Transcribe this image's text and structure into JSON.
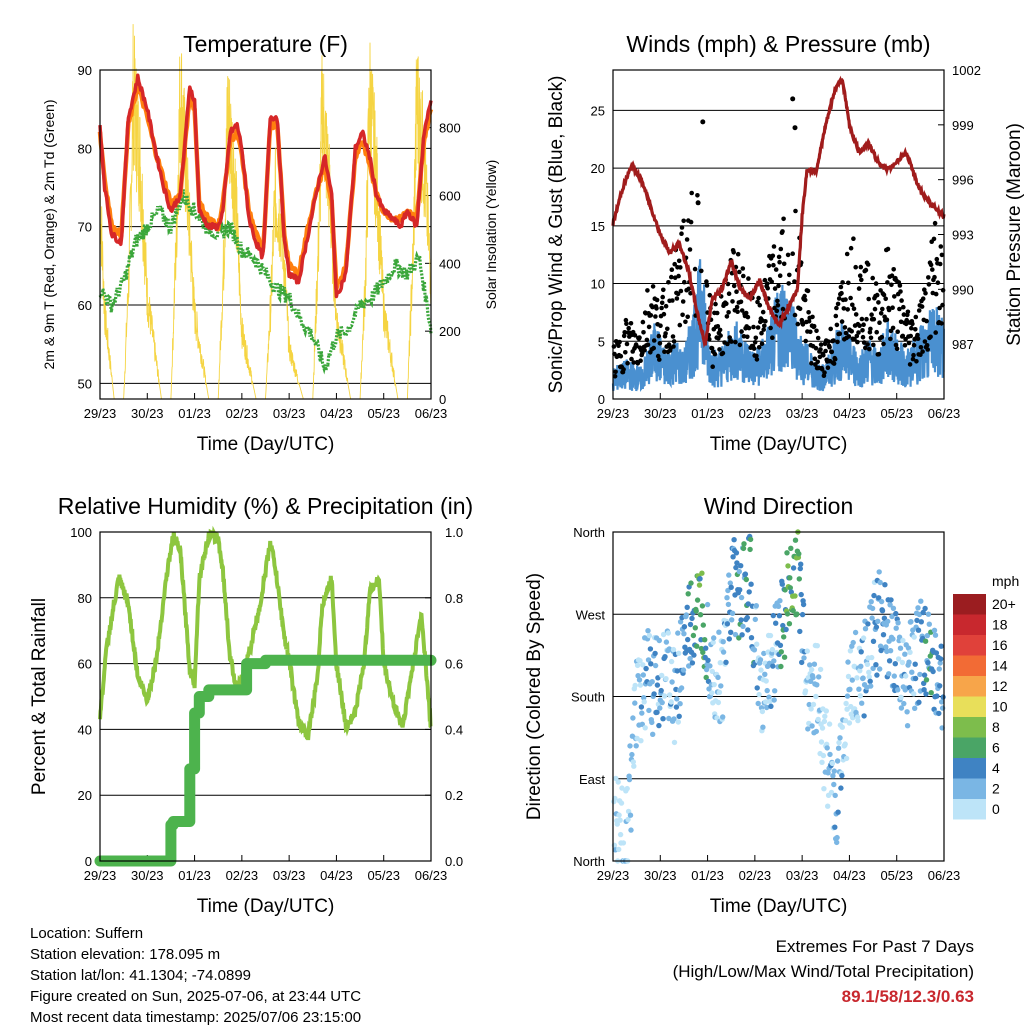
{
  "chart_data": [
    {
      "type": "line",
      "title": "Temperature (F)",
      "xlabel": "Time (Day/UTC)",
      "ylabel": "2m & 9m T (Red, Orange) & 2m Td (Green)",
      "ylabel_right": "Solar Insolation (Yellow)",
      "x_ticks": [
        "29/23",
        "30/23",
        "01/23",
        "02/23",
        "03/23",
        "04/23",
        "05/23",
        "06/23"
      ],
      "ylim": [
        48,
        90
      ],
      "y_ticks": [
        50,
        60,
        70,
        80,
        90
      ],
      "ylim_right": [
        0,
        970
      ],
      "y_ticks_right": [
        0,
        200,
        400,
        600,
        800
      ],
      "grid": true,
      "series": [
        {
          "color": "#d62728",
          "x": [
            0,
            0.1,
            0.25,
            0.45,
            0.6,
            0.8,
            1.0,
            1.2,
            1.35,
            1.5,
            1.7,
            1.9,
            2.0,
            2.1,
            2.3,
            2.5,
            2.6,
            2.75,
            2.9,
            3.0,
            3.15,
            3.3,
            3.45,
            3.6,
            3.75,
            3.9,
            4.0,
            4.2,
            4.4,
            4.6,
            4.75,
            4.9,
            5.0,
            5.2,
            5.4,
            5.55,
            5.7,
            5.85,
            6.0,
            6.2,
            6.35,
            6.5,
            6.7,
            6.85,
            7.0
          ],
          "values": [
            83,
            75,
            69,
            68,
            84,
            89,
            85,
            79,
            75,
            72,
            74,
            88,
            86,
            72,
            70,
            70,
            72,
            82,
            83,
            80,
            71,
            68,
            66,
            84,
            84,
            68,
            64,
            63,
            69,
            75,
            79,
            74,
            61,
            64,
            80,
            82,
            79,
            74,
            72,
            71,
            70,
            72,
            70,
            82,
            86
          ]
        },
        {
          "color": "#ff7f0e",
          "x": [
            0,
            0.1,
            0.25,
            0.45,
            0.6,
            0.8,
            1.0,
            1.2,
            1.35,
            1.5,
            1.7,
            1.9,
            2.0,
            2.1,
            2.3,
            2.5,
            2.6,
            2.75,
            2.9,
            3.0,
            3.15,
            3.3,
            3.45,
            3.6,
            3.75,
            3.9,
            4.0,
            4.2,
            4.4,
            4.6,
            4.75,
            4.9,
            5.0,
            5.2,
            5.4,
            5.55,
            5.7,
            5.85,
            6.0,
            6.2,
            6.35,
            6.5,
            6.7,
            6.85,
            7.0
          ],
          "values": [
            82,
            76,
            70,
            69,
            83,
            88,
            84,
            79,
            76,
            73,
            74,
            87,
            85,
            73,
            71,
            70,
            73,
            81,
            82,
            79,
            72,
            69,
            67,
            83,
            83,
            69,
            65,
            64,
            70,
            75,
            78,
            73,
            62,
            65,
            79,
            81,
            78,
            74,
            72,
            71,
            71,
            72,
            71,
            81,
            85
          ]
        },
        {
          "color": "#3aa63a",
          "x": [
            0,
            0.25,
            0.5,
            0.75,
            1.0,
            1.25,
            1.5,
            1.75,
            2.0,
            2.25,
            2.5,
            2.75,
            3.0,
            3.25,
            3.5,
            3.75,
            4.0,
            4.25,
            4.5,
            4.75,
            5.0,
            5.25,
            5.5,
            5.75,
            6.0,
            6.25,
            6.5,
            6.75,
            7.0
          ],
          "values": [
            62,
            60,
            63,
            68,
            70,
            72,
            70,
            74,
            72,
            70,
            69,
            70,
            67,
            66,
            64,
            62,
            61,
            58,
            56,
            52,
            56,
            57,
            60,
            61,
            63,
            65,
            64,
            66,
            57
          ]
        },
        {
          "color": "#f5d442",
          "axis": "right",
          "x": [
            0,
            0.1,
            0.3,
            0.5,
            0.62,
            0.7,
            0.85,
            1.0,
            1.3,
            1.5,
            1.62,
            1.7,
            1.85,
            2.0,
            2.3,
            2.5,
            2.62,
            2.7,
            2.85,
            3.0,
            3.3,
            3.5,
            3.62,
            3.7,
            3.85,
            4.0,
            4.3,
            4.5,
            4.62,
            4.7,
            4.85,
            5.0,
            5.3,
            5.5,
            5.62,
            5.7,
            5.85,
            6.0,
            6.3,
            6.5,
            6.62,
            6.7,
            6.85,
            7.0
          ],
          "values": [
            600,
            250,
            0,
            0,
            400,
            900,
            700,
            300,
            0,
            0,
            500,
            920,
            600,
            250,
            0,
            0,
            420,
            850,
            650,
            200,
            0,
            0,
            300,
            600,
            500,
            150,
            0,
            0,
            450,
            860,
            620,
            240,
            0,
            0,
            380,
            900,
            640,
            260,
            0,
            0,
            420,
            880,
            700,
            350
          ]
        }
      ]
    },
    {
      "type": "scatter",
      "title": "Winds (mph) & Pressure (mb)",
      "xlabel": "Time (Day/UTC)",
      "ylabel": "Sonic/Prop Wind & Gust (Blue, Black)",
      "ylabel_right": "Station Pressure (Maroon)",
      "x_ticks": [
        "29/23",
        "30/23",
        "01/23",
        "02/23",
        "03/23",
        "04/23",
        "05/23",
        "06/23"
      ],
      "ylim": [
        0,
        28.5
      ],
      "y_ticks": [
        0,
        5,
        10,
        15,
        20,
        25
      ],
      "ylim_right": [
        984,
        1002
      ],
      "y_ticks_right": [
        987,
        990,
        993,
        996,
        999,
        1002
      ],
      "grid": true,
      "pressure": {
        "color": "#a01c1c",
        "x": [
          0,
          0.2,
          0.4,
          0.6,
          0.8,
          1.0,
          1.2,
          1.4,
          1.6,
          1.8,
          1.95,
          2.1,
          2.3,
          2.5,
          2.7,
          2.9,
          3.1,
          3.3,
          3.5,
          3.7,
          3.9,
          4.0,
          4.1,
          4.3,
          4.5,
          4.7,
          4.85,
          5.0,
          5.2,
          5.4,
          5.6,
          5.8,
          6.0,
          6.2,
          6.4,
          6.6,
          6.8,
          7.0
        ],
        "values": [
          993.6,
          995.5,
          996.8,
          996.0,
          994.5,
          993.0,
          992.0,
          992.5,
          991.0,
          988.5,
          987.0,
          989.5,
          990.0,
          991.5,
          990.0,
          989.5,
          990.5,
          989.0,
          988.0,
          989.0,
          990.0,
          994.0,
          996.5,
          996.5,
          999.0,
          1001.0,
          1001.5,
          999.0,
          997.5,
          998.0,
          997.0,
          996.5,
          997.0,
          997.5,
          996.0,
          995.0,
          994.5,
          994.0
        ]
      },
      "sonic": {
        "color": "#4a90d0",
        "x": [
          0,
          0.3,
          0.6,
          0.9,
          1.1,
          1.3,
          1.5,
          1.7,
          1.9,
          2.0,
          2.2,
          2.4,
          2.6,
          2.8,
          3.0,
          3.2,
          3.4,
          3.6,
          3.8,
          4.0,
          4.2,
          4.4,
          4.6,
          4.8,
          5.0,
          5.2,
          5.4,
          5.6,
          5.8,
          6.0,
          6.2,
          6.4,
          6.6,
          6.8,
          7.0
        ],
        "values": [
          2,
          2.5,
          2,
          5,
          3,
          4,
          3,
          6,
          10,
          4,
          3,
          4,
          5,
          4,
          3,
          4,
          6,
          8,
          6,
          4,
          3,
          2,
          3,
          5,
          4,
          3,
          4,
          3,
          5,
          4,
          3,
          4,
          5,
          6,
          5
        ]
      },
      "gust": {
        "color": "#000000",
        "x": [
          0.1,
          0.3,
          0.5,
          0.8,
          1.0,
          1.3,
          1.6,
          1.8,
          1.9,
          2.0,
          2.1,
          2.4,
          2.6,
          2.9,
          3.0,
          3.3,
          3.6,
          3.8,
          3.85,
          3.9,
          4.0,
          4.2,
          4.4,
          4.7,
          5.0,
          5.3,
          5.6,
          5.8,
          6.0,
          6.3,
          6.6,
          6.8,
          7.0
        ],
        "values": [
          4,
          6,
          5,
          9,
          7,
          10,
          14,
          17,
          24,
          12,
          6,
          9,
          11,
          8,
          6,
          10,
          13,
          26,
          23.5,
          14,
          10,
          6,
          4,
          6,
          12,
          10,
          8,
          11,
          9,
          6,
          8,
          13,
          10
        ]
      }
    },
    {
      "type": "line",
      "title": "Relative Humidity (%) & Precipitation (in)",
      "xlabel": "Time (Day/UTC)",
      "ylabel": "Percent & Total Rainfall",
      "x_ticks": [
        "29/23",
        "30/23",
        "01/23",
        "02/23",
        "03/23",
        "04/23",
        "05/23",
        "06/23"
      ],
      "ylim": [
        0,
        100
      ],
      "y_ticks": [
        0,
        20,
        40,
        60,
        80,
        100
      ],
      "ylim_right": [
        0,
        1.0
      ],
      "y_ticks_right": [
        "0.0",
        "0.2",
        "0.4",
        "0.6",
        "0.8",
        "1.0"
      ],
      "grid": true,
      "series": [
        {
          "color": "#8dc63f",
          "x": [
            0,
            0.15,
            0.4,
            0.6,
            0.8,
            1.0,
            1.2,
            1.4,
            1.55,
            1.7,
            1.9,
            2.0,
            2.1,
            2.3,
            2.5,
            2.6,
            2.75,
            2.9,
            3.0,
            3.2,
            3.4,
            3.6,
            3.7,
            3.9,
            4.0,
            4.2,
            4.4,
            4.6,
            4.7,
            4.9,
            5.0,
            5.2,
            5.4,
            5.6,
            5.7,
            5.9,
            6.0,
            6.2,
            6.4,
            6.6,
            6.8,
            7.0
          ],
          "values": [
            44,
            66,
            86,
            78,
            56,
            49,
            62,
            86,
            99,
            94,
            58,
            54,
            86,
            99,
            98,
            88,
            62,
            52,
            55,
            66,
            79,
            97,
            90,
            68,
            61,
            42,
            38,
            56,
            78,
            86,
            60,
            41,
            45,
            62,
            82,
            86,
            60,
            48,
            41,
            58,
            75,
            40
          ]
        },
        {
          "color": "#4db34d",
          "axis": "right",
          "x": [
            0,
            0.5,
            1.0,
            1.2,
            1.3,
            1.5,
            1.55,
            1.6,
            1.7,
            1.8,
            1.9,
            2.0,
            2.1,
            2.3,
            2.5,
            2.8,
            3.0,
            3.1,
            3.5,
            4.0,
            5.0,
            6.0,
            7.0
          ],
          "values": [
            0,
            0,
            0,
            0,
            0,
            0.11,
            0.12,
            0.12,
            0.12,
            0.12,
            0.28,
            0.45,
            0.5,
            0.52,
            0.52,
            0.52,
            0.52,
            0.6,
            0.61,
            0.61,
            0.61,
            0.61,
            0.61
          ]
        }
      ]
    },
    {
      "type": "scatter",
      "title": "Wind Direction",
      "xlabel": "Time (Day/UTC)",
      "ylabel": "Direction (Colored By Speed)",
      "x_ticks": [
        "29/23",
        "30/23",
        "01/23",
        "02/23",
        "03/23",
        "04/23",
        "05/23",
        "06/23"
      ],
      "y_categories": [
        "North",
        "East",
        "South",
        "West",
        "North"
      ],
      "ylim": [
        0,
        360
      ],
      "grid": true,
      "legend": {
        "title": "mph",
        "labels": [
          "20+",
          "18",
          "16",
          "14",
          "12",
          "10",
          "8",
          "6",
          "4",
          "2",
          "0"
        ],
        "colors": [
          "#9b1d20",
          "#c8282e",
          "#e0413a",
          "#f26b35",
          "#f7a54a",
          "#e8df5a",
          "#7dbd4c",
          "#4aa566",
          "#3f83c3",
          "#7ab6e4",
          "#bde4f8"
        ]
      },
      "points_summary": {
        "x": [
          0.1,
          0.3,
          0.5,
          0.7,
          0.9,
          1.1,
          1.3,
          1.5,
          1.7,
          1.9,
          2.1,
          2.3,
          2.5,
          2.7,
          2.9,
          3.1,
          3.3,
          3.5,
          3.7,
          3.9,
          4.1,
          4.3,
          4.5,
          4.7,
          4.9,
          5.1,
          5.3,
          5.5,
          5.7,
          5.9,
          6.1,
          6.3,
          6.5,
          6.7,
          6.9
        ],
        "values": [
          40,
          30,
          170,
          200,
          190,
          210,
          180,
          230,
          260,
          270,
          210,
          190,
          300,
          290,
          310,
          180,
          200,
          250,
          290,
          320,
          200,
          190,
          120,
          60,
          150,
          200,
          210,
          250,
          270,
          240,
          190,
          210,
          230,
          220,
          200
        ],
        "speeds": [
          1,
          2,
          2,
          3,
          4,
          3,
          3,
          4,
          6,
          7,
          2,
          2,
          4,
          5,
          7,
          1,
          2,
          4,
          7,
          8,
          2,
          2,
          1,
          3,
          2,
          2,
          3,
          3,
          4,
          4,
          2,
          3,
          4,
          5,
          4
        ]
      }
    }
  ],
  "info": {
    "location": "Location: Suffern",
    "elevation": "Station elevation: 178.095 m",
    "latlon": "Station lat/lon: 41.1304; -74.0899",
    "created": "Figure created on Sun, 2025-07-06, at 23:44 UTC",
    "recent": "Most recent data timestamp: 2025/07/06 23:15:00"
  },
  "extremes": {
    "title": "Extremes For Past 7 Days",
    "subtitle": "(High/Low/Max Wind/Total Precipitation)",
    "value": "89.1/58/12.3/0.63"
  }
}
